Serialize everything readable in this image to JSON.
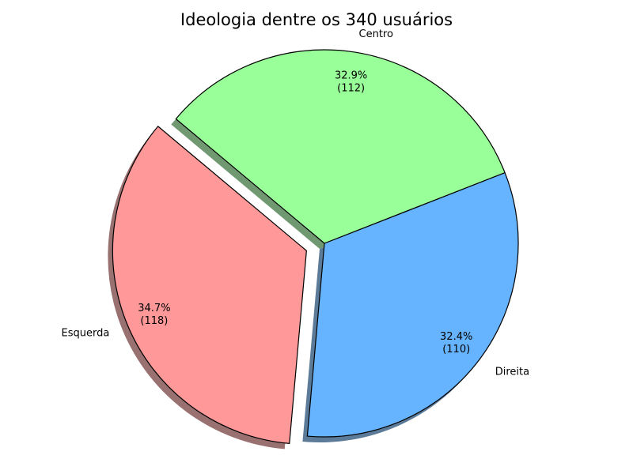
{
  "chart_data": {
    "type": "pie",
    "title": "Ideologia dentre os 340 usuários",
    "total": 340,
    "slices": [
      {
        "label": "Esquerda",
        "value": 118,
        "percent_label": "34.7%",
        "count_label": "(118)",
        "color": "#ff9999",
        "exploded": true
      },
      {
        "label": "Direita",
        "value": 110,
        "percent_label": "32.4%",
        "count_label": "(110)",
        "color": "#66b3ff",
        "exploded": false
      },
      {
        "label": "Centro",
        "value": 112,
        "percent_label": "32.9%",
        "count_label": "(112)",
        "color": "#99ff99",
        "exploded": false
      }
    ],
    "start_angle_deg": 140,
    "direction": "counterclockwise",
    "shadow": true,
    "edge_color": "#000000"
  }
}
